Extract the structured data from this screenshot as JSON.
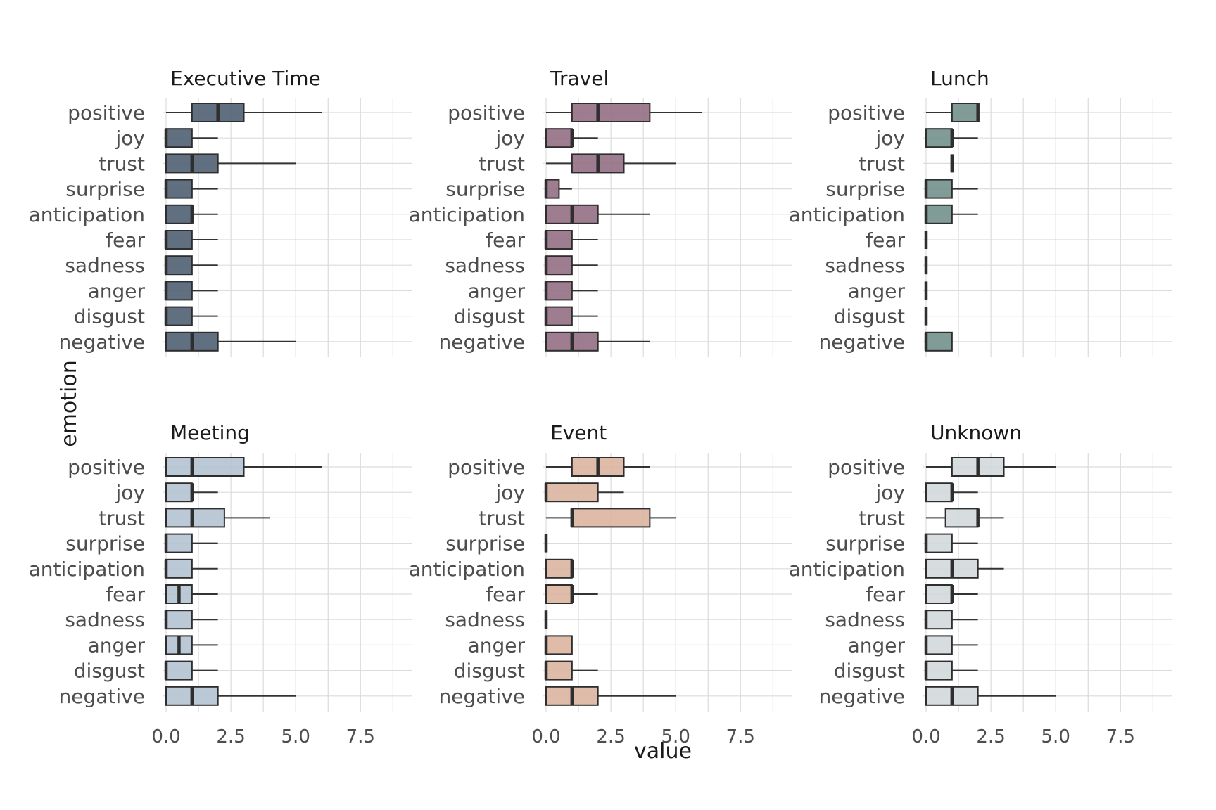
{
  "chart_data": {
    "type": "boxplot",
    "xlabel": "value",
    "ylabel": "emotion",
    "xlim": [
      0,
      9.5
    ],
    "x_ticks": [
      0,
      2.5,
      5,
      7.5
    ],
    "x_tick_labels": [
      "0.0",
      "2.5",
      "5.0",
      "7.5"
    ],
    "categories": [
      "positive",
      "joy",
      "trust",
      "surprise",
      "anticipation",
      "fear",
      "sadness",
      "anger",
      "disgust",
      "negative"
    ],
    "grid": true,
    "panels": [
      {
        "title": "Executive Time",
        "color": "#4f6073",
        "boxes": [
          [
            0,
            1,
            2,
            3,
            6
          ],
          [
            0,
            0,
            0,
            1,
            2
          ],
          [
            0,
            0,
            1,
            2,
            5
          ],
          [
            0,
            0,
            0,
            1,
            2
          ],
          [
            0,
            0,
            1,
            1,
            2
          ],
          [
            0,
            0,
            0,
            1,
            2
          ],
          [
            0,
            0,
            0,
            1,
            2
          ],
          [
            0,
            0,
            0,
            1,
            2
          ],
          [
            0,
            0,
            0,
            1,
            2
          ],
          [
            0,
            0,
            1,
            2,
            5
          ]
        ]
      },
      {
        "title": "Travel",
        "color": "#956f84",
        "boxes": [
          [
            0,
            1,
            2,
            4,
            6
          ],
          [
            0,
            0,
            1,
            1,
            2
          ],
          [
            0,
            1,
            2,
            3,
            5
          ],
          [
            0,
            0,
            0,
            0.5,
            1
          ],
          [
            0,
            0,
            1,
            2,
            4
          ],
          [
            0,
            0,
            0,
            1,
            2
          ],
          [
            0,
            0,
            0,
            1,
            2
          ],
          [
            0,
            0,
            0,
            1,
            2
          ],
          [
            0,
            0,
            0,
            1,
            2
          ],
          [
            0,
            0,
            1,
            2,
            4
          ]
        ]
      },
      {
        "title": "Lunch",
        "color": "#73908c",
        "boxes": [
          [
            0,
            1,
            2,
            2,
            2
          ],
          [
            0,
            0,
            1,
            1,
            2
          ],
          [
            1,
            1,
            1,
            1,
            1
          ],
          [
            0,
            0,
            0,
            1,
            2
          ],
          [
            0,
            0,
            0,
            1,
            2
          ],
          [
            0,
            0,
            0,
            0,
            0
          ],
          [
            0,
            0,
            0,
            0,
            0
          ],
          [
            0,
            0,
            0,
            0,
            0
          ],
          [
            0,
            0,
            0,
            0,
            0
          ],
          [
            0,
            0,
            0,
            1,
            1
          ]
        ]
      },
      {
        "title": "Meeting",
        "color": "#b4c3d3",
        "boxes": [
          [
            0,
            0,
            1,
            3,
            6
          ],
          [
            0,
            0,
            1,
            1,
            2
          ],
          [
            0,
            0,
            1,
            2.25,
            4
          ],
          [
            0,
            0,
            0,
            1,
            2
          ],
          [
            0,
            0,
            0,
            1,
            2
          ],
          [
            0,
            0,
            0.5,
            1,
            2
          ],
          [
            0,
            0,
            0,
            1,
            2
          ],
          [
            0,
            0,
            0.5,
            1,
            2
          ],
          [
            0,
            0,
            0,
            1,
            2
          ],
          [
            0,
            0,
            1,
            2,
            5
          ]
        ]
      },
      {
        "title": "Event",
        "color": "#dcb5a0",
        "boxes": [
          [
            0,
            1,
            2,
            3,
            4
          ],
          [
            0,
            0,
            0,
            2,
            3
          ],
          [
            0,
            1,
            1,
            4,
            5
          ],
          [
            0,
            0,
            0,
            0,
            0
          ],
          [
            0,
            0,
            1,
            1,
            1
          ],
          [
            0,
            0,
            1,
            1,
            2
          ],
          [
            0,
            0,
            0,
            0,
            0
          ],
          [
            0,
            0,
            0,
            1,
            1
          ],
          [
            0,
            0,
            0,
            1,
            2
          ],
          [
            0,
            0,
            1,
            2,
            5
          ]
        ]
      },
      {
        "title": "Unknown",
        "color": "#d3d8dc",
        "boxes": [
          [
            0,
            1,
            2,
            3,
            5
          ],
          [
            0,
            0,
            1,
            1,
            2
          ],
          [
            0,
            0.75,
            2,
            2,
            3
          ],
          [
            0,
            0,
            0,
            1,
            2
          ],
          [
            0,
            0,
            1,
            2,
            3
          ],
          [
            0,
            0,
            1,
            1,
            2
          ],
          [
            0,
            0,
            0,
            1,
            2
          ],
          [
            0,
            0,
            0,
            1,
            2
          ],
          [
            0,
            0,
            0,
            1,
            2
          ],
          [
            0,
            0,
            1,
            2,
            5
          ]
        ]
      }
    ]
  }
}
